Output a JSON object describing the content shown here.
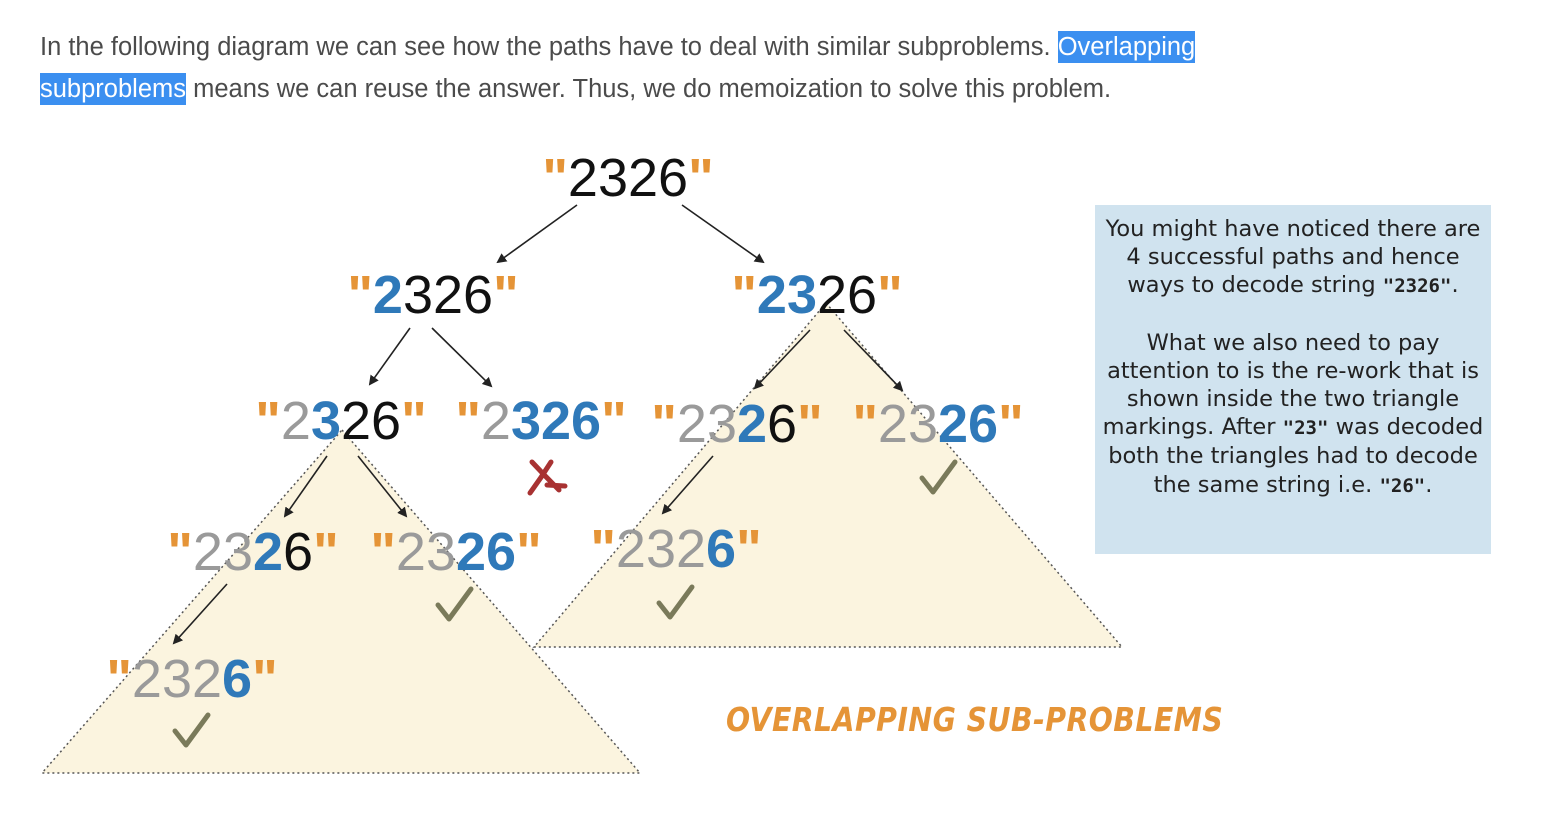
{
  "paragraph": {
    "text_before": "In the following diagram we can see how the paths have to deal with similar subproblems. ",
    "highlight_line1": "Overlapping ",
    "highlight_line2": "subproblems",
    "text_after": " means we can reuse the answer. Thus, we do memoization to solve this problem."
  },
  "diagram": {
    "root": "2326",
    "nodes": [
      {
        "id": "root",
        "text": "2326",
        "parts": [
          {
            "t": "\"",
            "s": "q"
          },
          {
            "t": "2326",
            "s": "k"
          },
          {
            "t": "\"",
            "s": "q"
          }
        ]
      },
      {
        "id": "l1-left",
        "text": "2326",
        "parts": [
          {
            "t": "\"",
            "s": "q"
          },
          {
            "t": "2",
            "s": "b"
          },
          {
            "t": "326",
            "s": "k"
          },
          {
            "t": "\"",
            "s": "q"
          }
        ]
      },
      {
        "id": "l1-right",
        "text": "2326",
        "parts": [
          {
            "t": "\"",
            "s": "q"
          },
          {
            "t": "23",
            "s": "b"
          },
          {
            "t": "26",
            "s": "k"
          },
          {
            "t": "\"",
            "s": "q"
          }
        ]
      },
      {
        "id": "l2-a",
        "text": "2326",
        "parts": [
          {
            "t": "\"",
            "s": "q"
          },
          {
            "t": "2",
            "s": "g"
          },
          {
            "t": "3",
            "s": "b"
          },
          {
            "t": "26",
            "s": "k"
          },
          {
            "t": "\"",
            "s": "q"
          }
        ]
      },
      {
        "id": "l2-b",
        "text": "2326",
        "parts": [
          {
            "t": "\"",
            "s": "q"
          },
          {
            "t": "2",
            "s": "g"
          },
          {
            "t": "326",
            "s": "b"
          },
          {
            "t": "\"",
            "s": "q"
          }
        ]
      },
      {
        "id": "l2-c",
        "text": "2326",
        "parts": [
          {
            "t": "\"",
            "s": "q"
          },
          {
            "t": "23",
            "s": "g"
          },
          {
            "t": "2",
            "s": "b"
          },
          {
            "t": "6",
            "s": "k"
          },
          {
            "t": "\"",
            "s": "q"
          }
        ]
      },
      {
        "id": "l2-d",
        "text": "2326",
        "parts": [
          {
            "t": "\"",
            "s": "q"
          },
          {
            "t": "23",
            "s": "g"
          },
          {
            "t": "26",
            "s": "b"
          },
          {
            "t": "\"",
            "s": "q"
          }
        ]
      },
      {
        "id": "l3-a",
        "text": "2326",
        "parts": [
          {
            "t": "\"",
            "s": "q"
          },
          {
            "t": "23",
            "s": "g"
          },
          {
            "t": "2",
            "s": "b"
          },
          {
            "t": "6",
            "s": "k"
          },
          {
            "t": "\"",
            "s": "q"
          }
        ]
      },
      {
        "id": "l3-b",
        "text": "2326",
        "parts": [
          {
            "t": "\"",
            "s": "q"
          },
          {
            "t": "23",
            "s": "g"
          },
          {
            "t": "26",
            "s": "b"
          },
          {
            "t": "\"",
            "s": "q"
          }
        ]
      },
      {
        "id": "l3-c",
        "text": "2326",
        "parts": [
          {
            "t": "\"",
            "s": "q"
          },
          {
            "t": "232",
            "s": "g"
          },
          {
            "t": "6",
            "s": "b"
          },
          {
            "t": "\"",
            "s": "q"
          }
        ]
      },
      {
        "id": "l4-a",
        "text": "2326",
        "parts": [
          {
            "t": "\"",
            "s": "q"
          },
          {
            "t": "232",
            "s": "g"
          },
          {
            "t": "6",
            "s": "b"
          },
          {
            "t": "\"",
            "s": "q"
          }
        ]
      }
    ],
    "marks": [
      {
        "id": "fail-l2-b",
        "type": "cross"
      },
      {
        "id": "ok-l2-d",
        "type": "check"
      },
      {
        "id": "ok-l3-b",
        "type": "check"
      },
      {
        "id": "ok-l3-c",
        "type": "check"
      },
      {
        "id": "ok-l4-a",
        "type": "check"
      }
    ],
    "caption": "OVERLAPPING SUB-PROBLEMS"
  },
  "note": {
    "p1_before": "You might have noticed there are 4 successful paths and hence ways to decode string ",
    "p1_code": "\"2326\"",
    "p1_after": ".",
    "p2_before": "What we also need to pay attention to is the re-work that is shown inside the two triangle markings. After ",
    "p2_code1": "\"23\"",
    "p2_mid": " was decoded both the triangles had to decode the same string i.e. ",
    "p2_code2": "\"26\"",
    "p2_after": "."
  },
  "colors": {
    "quote": "#e59437",
    "bold_blue": "#2f79b9",
    "black": "#111111",
    "gray": "#9a9a9a",
    "triangle_fill": "#fbf4df",
    "check": "#7a7a5a",
    "cross": "#a83232",
    "highlight": "#3b8ff0",
    "info_bg": "#d0e3ef"
  }
}
